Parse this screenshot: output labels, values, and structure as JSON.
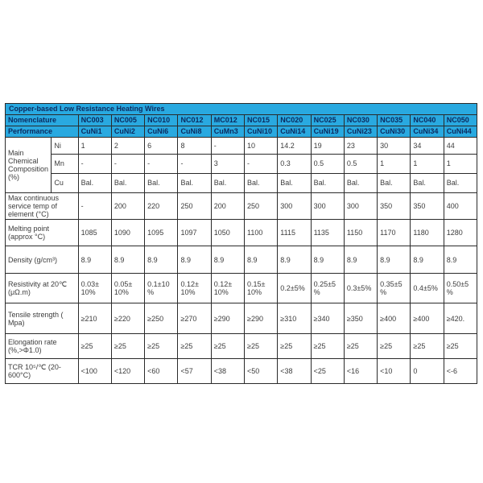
{
  "table": {
    "title": "Copper-based Low Resistance Heating Wires",
    "nomenclature_label": "Nomenclature",
    "performance_label": "Performance",
    "columns": [
      "NC003",
      "NC005",
      "NC010",
      "NC012",
      "MC012",
      "NC015",
      "NC020",
      "NC025",
      "NC030",
      "NC035",
      "NC040",
      "NC050"
    ],
    "alloys": [
      "CuNi1",
      "CuNi2",
      "CuNi6",
      "CuNi8",
      "CuMn3",
      "CuNi10",
      "CuNi14",
      "CuNi19",
      "CuNi23",
      "CuNi30",
      "CuNi34",
      "CuNi44"
    ],
    "composition": {
      "label": "Main Chemical Composition (%)",
      "rows": [
        {
          "element": "Ni",
          "values": [
            "1",
            "2",
            "6",
            "8",
            "-",
            "10",
            "14.2",
            "19",
            "23",
            "30",
            "34",
            "44"
          ]
        },
        {
          "element": "Mn",
          "values": [
            "-",
            "-",
            "-",
            "-",
            "3",
            "-",
            "0.3",
            "0.5",
            "0.5",
            "1",
            "1",
            "1"
          ]
        },
        {
          "element": "Cu",
          "values": [
            "Bal.",
            "Bal.",
            "Bal.",
            "Bal.",
            "Bal.",
            "Bal.",
            "Bal.",
            "Bal.",
            "Bal.",
            "Bal.",
            "Bal.",
            "Bal."
          ]
        }
      ]
    },
    "property_rows": [
      {
        "label": "Max continuous service temp of element (°C)",
        "values": [
          "-",
          "200",
          "220",
          "250",
          "200",
          "250",
          "300",
          "300",
          "300",
          "350",
          "350",
          "400"
        ]
      },
      {
        "label": "Melting point (approx °C)",
        "values": [
          "1085",
          "1090",
          "1095",
          "1097",
          "1050",
          "1100",
          "1115",
          "1135",
          "1150",
          "1170",
          "1180",
          "1280"
        ]
      },
      {
        "label": "Density (g/cm³)",
        "values": [
          "8.9",
          "8.9",
          "8.9",
          "8.9",
          "8.9",
          "8.9",
          "8.9",
          "8.9",
          "8.9",
          "8.9",
          "8.9",
          "8.9"
        ]
      },
      {
        "label": "Resistivity at 20℃ (μΩ.m)",
        "values": [
          "0.03± 10%",
          "0.05± 10%",
          "0.1±10%",
          "0.12± 10%",
          "0.12± 10%",
          "0.15± 10%",
          "0.2±5%",
          "0.25±5%",
          "0.3±5%",
          "0.35±5%",
          "0.4±5%",
          "0.50±5%"
        ]
      },
      {
        "label": "Tensile strength ( Mpa)",
        "values": [
          "≥210",
          "≥220",
          "≥250",
          "≥270",
          "≥290",
          "≥290",
          "≥310",
          "≥340",
          "≥350",
          "≥400",
          "≥400",
          "≥420."
        ]
      },
      {
        "label": "Elongation rate (%,>Φ1.0)",
        "values": [
          "≥25",
          "≥25",
          "≥25",
          "≥25",
          "≥25",
          "≥25",
          "≥25",
          "≥25",
          "≥25",
          "≥25",
          "≥25",
          "≥25"
        ]
      },
      {
        "label": "TCR 10⁵/℃ (20-600°C)",
        "values": [
          "<100",
          "<120",
          "<60",
          "<57",
          "<38",
          "<50",
          "<38",
          "<25",
          "<16",
          "<10",
          "0",
          "<-6"
        ]
      }
    ]
  },
  "colors": {
    "header_bg": "#29a9e0",
    "header_text": "#0b2a5e",
    "border": "#2a2a2a",
    "body_text": "#3c3c3c"
  }
}
